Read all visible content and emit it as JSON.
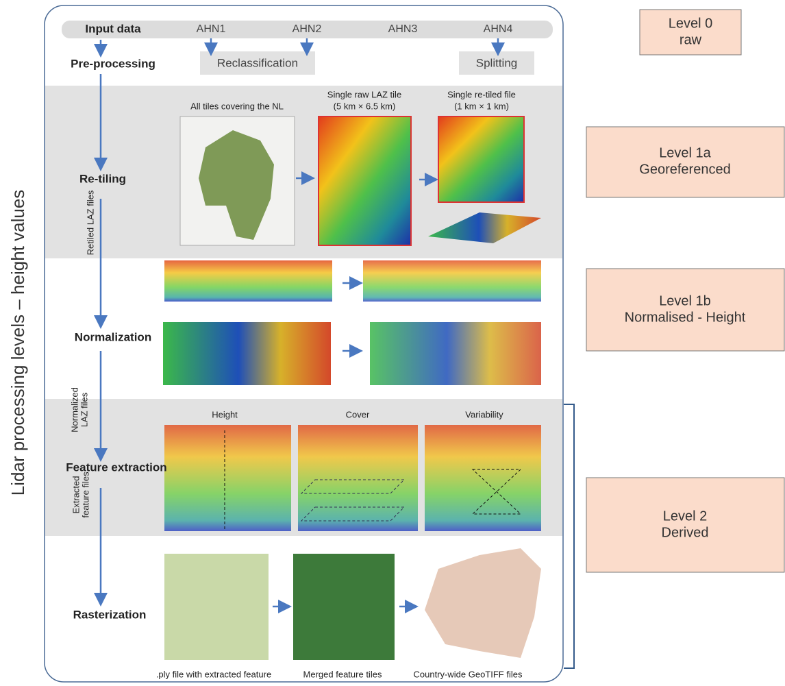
{
  "side_label": "Lidar processing levels – height values",
  "steps": [
    "Input data",
    "Pre-processing",
    "Re-tiling",
    "Normalization",
    "Feature extraction",
    "Rasterization"
  ],
  "inputs": [
    "AHN1",
    "AHN2",
    "AHN3",
    "AHN4"
  ],
  "preprocessing": [
    "Reclassification",
    "Splitting"
  ],
  "retiling_captions": [
    {
      "lines": [
        "All tiles covering the NL"
      ]
    },
    {
      "lines": [
        "Single raw LAZ tile",
        "(5 km × 6.5 km)"
      ]
    },
    {
      "lines": [
        "Single re-tiled file",
        "(1 km × 1 km)"
      ]
    }
  ],
  "flow_labels": [
    {
      "lines": [
        "Retiled LAZ files"
      ]
    },
    {
      "lines": [
        "Normalized",
        "LAZ files"
      ]
    },
    {
      "lines": [
        "Extracted",
        "feature files"
      ]
    }
  ],
  "features": [
    "Height",
    "Cover",
    "Variability"
  ],
  "raster_captions": [
    ".ply file with extracted feature",
    "Merged feature tiles",
    "Country-wide GeoTIFF files"
  ],
  "levels": [
    {
      "lines": [
        "Level 0",
        "raw"
      ]
    },
    {
      "lines": [
        "Level 1a",
        "Georeferenced"
      ]
    },
    {
      "lines": [
        "Level 1b",
        "Normalised - Height"
      ]
    },
    {
      "lines": [
        "Level 2",
        "Derived"
      ]
    }
  ]
}
